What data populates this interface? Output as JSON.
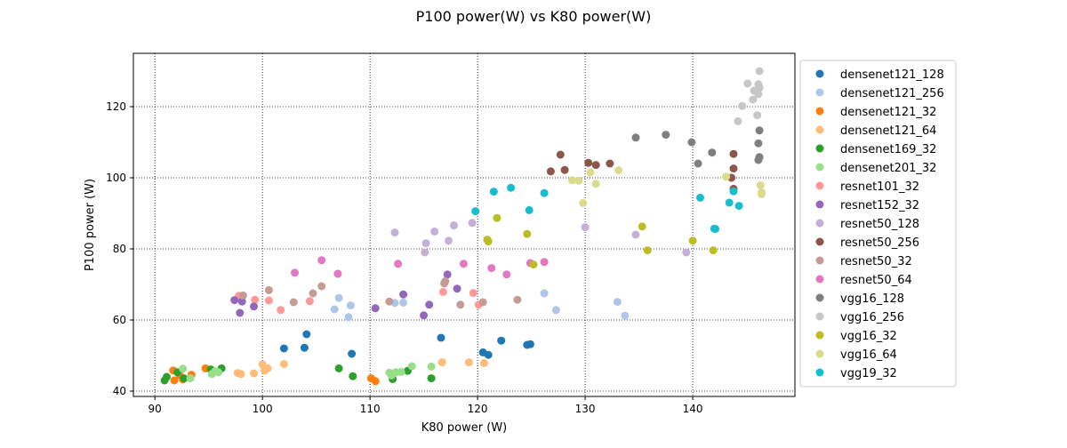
{
  "chart_data": {
    "type": "scatter",
    "title": "P100 power(W) vs K80 power(W)",
    "xlabel": "K80 power (W)",
    "ylabel": "P100 power (W)",
    "xlim": [
      88,
      149.5
    ],
    "ylim": [
      38.5,
      135
    ],
    "xticks": [
      90,
      100,
      110,
      120,
      130,
      140
    ],
    "yticks": [
      40,
      60,
      80,
      100,
      120
    ],
    "grid": true,
    "legend_position": "outside-right",
    "series": [
      {
        "name": "densenet121_128",
        "color": "#1f77b4",
        "points": [
          [
            102.0,
            52.0
          ],
          [
            103.9,
            52.2
          ],
          [
            104.1,
            56.0
          ],
          [
            108.3,
            50.5
          ],
          [
            116.6,
            55.0
          ],
          [
            120.5,
            50.9
          ],
          [
            121.0,
            50.2
          ],
          [
            122.2,
            54.2
          ],
          [
            124.6,
            53.0
          ],
          [
            124.9,
            53.2
          ]
        ]
      },
      {
        "name": "densenet121_256",
        "color": "#aec7e8",
        "points": [
          [
            106.7,
            63.0
          ],
          [
            107.1,
            66.2
          ],
          [
            108.0,
            60.8
          ],
          [
            108.2,
            64.1
          ],
          [
            112.3,
            64.8
          ],
          [
            113.1,
            64.9
          ],
          [
            126.2,
            67.5
          ],
          [
            127.3,
            62.8
          ],
          [
            133.0,
            65.1
          ],
          [
            133.7,
            61.2
          ]
        ]
      },
      {
        "name": "densenet121_32",
        "color": "#ff7f0e",
        "points": [
          [
            91.7,
            45.8
          ],
          [
            91.8,
            43.0
          ],
          [
            92.3,
            44.5
          ],
          [
            92.6,
            43.3
          ],
          [
            93.4,
            44.6
          ],
          [
            94.7,
            46.4
          ],
          [
            110.1,
            43.6
          ],
          [
            110.5,
            42.8
          ]
        ]
      },
      {
        "name": "densenet121_64",
        "color": "#ffbb78",
        "points": [
          [
            97.7,
            45.1
          ],
          [
            98.0,
            44.8
          ],
          [
            99.2,
            45.0
          ],
          [
            100.0,
            47.5
          ],
          [
            100.2,
            45.8
          ],
          [
            100.5,
            46.4
          ],
          [
            102.0,
            47.6
          ],
          [
            116.7,
            48.1
          ],
          [
            119.2,
            48.1
          ],
          [
            120.6,
            47.9
          ]
        ]
      },
      {
        "name": "densenet169_32",
        "color": "#2ca02c",
        "points": [
          [
            90.9,
            43.0
          ],
          [
            91.1,
            44.0
          ],
          [
            92.1,
            45.3
          ],
          [
            92.7,
            43.6
          ],
          [
            95.2,
            46.1
          ],
          [
            96.2,
            46.4
          ],
          [
            107.1,
            46.4
          ],
          [
            108.4,
            44.2
          ],
          [
            112.1,
            43.4
          ],
          [
            113.5,
            45.7
          ],
          [
            115.7,
            43.6
          ]
        ]
      },
      {
        "name": "densenet201_32",
        "color": "#98df8a",
        "points": [
          [
            92.6,
            46.3
          ],
          [
            93.3,
            43.6
          ],
          [
            95.3,
            44.8
          ],
          [
            95.6,
            45.6
          ],
          [
            95.9,
            45.3
          ],
          [
            111.8,
            45.2
          ],
          [
            112.0,
            44.4
          ],
          [
            112.4,
            45.3
          ],
          [
            112.9,
            45.4
          ],
          [
            113.9,
            47.0
          ],
          [
            115.7,
            46.9
          ]
        ]
      },
      {
        "name": "resnet101_32",
        "color": "#ff9896",
        "points": [
          [
            97.8,
            66.8
          ],
          [
            99.3,
            65.7
          ],
          [
            100.6,
            65.5
          ],
          [
            101.7,
            62.8
          ],
          [
            104.4,
            65.3
          ],
          [
            116.8,
            67.9
          ],
          [
            119.6,
            67.6
          ],
          [
            120.1,
            64.3
          ]
        ]
      },
      {
        "name": "resnet152_32",
        "color": "#9467bd",
        "points": [
          [
            97.4,
            65.6
          ],
          [
            97.9,
            62.0
          ],
          [
            98.1,
            65.2
          ],
          [
            99.2,
            63.8
          ],
          [
            110.5,
            63.3
          ],
          [
            113.1,
            67.2
          ],
          [
            115.0,
            61.3
          ],
          [
            115.5,
            64.3
          ],
          [
            117.2,
            72.8
          ],
          [
            118.1,
            68.8
          ]
        ]
      },
      {
        "name": "resnet50_128",
        "color": "#c5b0d5",
        "points": [
          [
            112.3,
            84.6
          ],
          [
            115.2,
            81.6
          ],
          [
            115.1,
            79.0
          ],
          [
            116.0,
            84.9
          ],
          [
            117.3,
            82.3
          ],
          [
            117.8,
            86.6
          ],
          [
            119.5,
            87.3
          ],
          [
            130.0,
            86.1
          ],
          [
            134.7,
            84.0
          ],
          [
            139.4,
            79.0
          ]
        ]
      },
      {
        "name": "resnet50_256",
        "color": "#8c564b",
        "points": [
          [
            126.8,
            101.8
          ],
          [
            127.7,
            106.5
          ],
          [
            128.1,
            102.2
          ],
          [
            130.3,
            104.2
          ],
          [
            131.0,
            103.6
          ],
          [
            132.3,
            104.0
          ],
          [
            143.6,
            100.0
          ],
          [
            143.8,
            106.7
          ],
          [
            143.8,
            102.6
          ],
          [
            143.8,
            96.9
          ]
        ]
      },
      {
        "name": "resnet50_32",
        "color": "#c49c94",
        "points": [
          [
            98.2,
            66.9
          ],
          [
            100.6,
            68.4
          ],
          [
            102.9,
            65.0
          ],
          [
            104.7,
            67.5
          ],
          [
            105.5,
            69.5
          ],
          [
            111.8,
            65.2
          ],
          [
            116.9,
            70.3
          ],
          [
            117.0,
            70.9
          ],
          [
            118.4,
            64.3
          ],
          [
            120.5,
            65.0
          ],
          [
            123.7,
            65.7
          ]
        ]
      },
      {
        "name": "resnet50_64",
        "color": "#e377c2",
        "points": [
          [
            103.0,
            73.3
          ],
          [
            105.5,
            76.8
          ],
          [
            107.0,
            73.0
          ],
          [
            112.6,
            75.8
          ],
          [
            118.7,
            75.8
          ],
          [
            121.3,
            74.6
          ],
          [
            122.7,
            72.8
          ],
          [
            124.9,
            76.0
          ],
          [
            126.2,
            76.3
          ]
        ]
      },
      {
        "name": "vgg16_128",
        "color": "#7f7f7f",
        "points": [
          [
            134.7,
            111.3
          ],
          [
            137.5,
            112.1
          ],
          [
            139.9,
            110.0
          ],
          [
            140.5,
            104.0
          ],
          [
            141.8,
            107.1
          ],
          [
            146.1,
            109.7
          ],
          [
            146.1,
            105.0
          ],
          [
            146.2,
            113.3
          ],
          [
            146.2,
            105.8
          ]
        ]
      },
      {
        "name": "vgg16_256",
        "color": "#c7c7c7",
        "points": [
          [
            144.2,
            115.9
          ],
          [
            144.6,
            120.2
          ],
          [
            145.1,
            126.5
          ],
          [
            145.6,
            122.0
          ],
          [
            145.7,
            124.5
          ],
          [
            146.0,
            117.6
          ],
          [
            146.1,
            123.5
          ],
          [
            146.1,
            126.3
          ],
          [
            146.2,
            125.3
          ],
          [
            146.2,
            130.0
          ]
        ]
      },
      {
        "name": "vgg16_32",
        "color": "#bcbd22",
        "points": [
          [
            120.9,
            82.6
          ],
          [
            121.0,
            82.1
          ],
          [
            121.8,
            88.7
          ],
          [
            124.6,
            84.2
          ],
          [
            125.2,
            75.6
          ],
          [
            135.3,
            86.3
          ],
          [
            135.8,
            79.6
          ],
          [
            140.0,
            82.3
          ],
          [
            141.9,
            79.6
          ]
        ]
      },
      {
        "name": "vgg16_64",
        "color": "#dbdb8d",
        "points": [
          [
            128.8,
            99.3
          ],
          [
            129.4,
            99.2
          ],
          [
            129.8,
            92.9
          ],
          [
            130.5,
            101.5
          ],
          [
            131.0,
            98.3
          ],
          [
            133.1,
            102.1
          ],
          [
            143.1,
            100.3
          ],
          [
            146.3,
            97.9
          ],
          [
            146.4,
            95.9
          ],
          [
            146.4,
            95.4
          ]
        ]
      },
      {
        "name": "vgg19_32",
        "color": "#17becf",
        "points": [
          [
            119.8,
            90.6
          ],
          [
            121.5,
            96.1
          ],
          [
            123.1,
            97.2
          ],
          [
            124.8,
            90.9
          ],
          [
            126.2,
            95.7
          ],
          [
            140.7,
            94.4
          ],
          [
            142.0,
            85.7
          ],
          [
            142.1,
            85.6
          ],
          [
            143.4,
            93.0
          ],
          [
            143.8,
            96.2
          ],
          [
            144.3,
            92.1
          ]
        ]
      }
    ]
  }
}
